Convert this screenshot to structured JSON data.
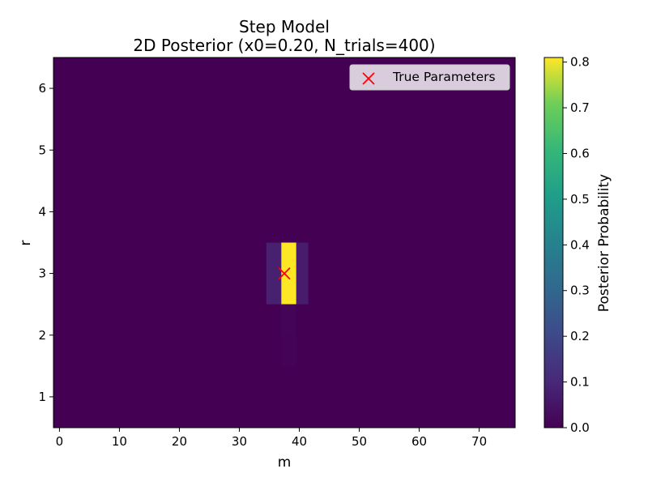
{
  "chart_data": {
    "type": "heatmap",
    "title_lines": [
      "Step Model",
      "2D Posterior (x0=0.20, N_trials=400)"
    ],
    "xlabel": "m",
    "ylabel": "r",
    "xlim": [
      -1,
      76
    ],
    "ylim": [
      0.5,
      6.5
    ],
    "xticks": [
      0,
      10,
      20,
      30,
      40,
      50,
      60,
      70
    ],
    "yticks": [
      1,
      2,
      3,
      4,
      5,
      6
    ],
    "background_value": 0.0,
    "cells": [
      {
        "m": [
          34.5,
          37.0
        ],
        "r": [
          2.5,
          3.5
        ],
        "value": 0.08
      },
      {
        "m": [
          37.0,
          39.5
        ],
        "r": [
          2.5,
          3.5
        ],
        "value": 0.81
      },
      {
        "m": [
          39.5,
          41.5
        ],
        "r": [
          2.5,
          3.5
        ],
        "value": 0.07
      },
      {
        "m": [
          37.0,
          39.5
        ],
        "r": [
          2.0,
          2.5
        ],
        "value": 0.01
      },
      {
        "m": [
          37.0,
          39.5
        ],
        "r": [
          1.5,
          2.0
        ],
        "value": 0.005
      }
    ],
    "marker": {
      "m": 37.5,
      "r": 3.0,
      "symbol": "x",
      "color": "#ff0000",
      "label": "True Parameters"
    },
    "legend": {
      "placement": "top-right",
      "entries": [
        "True Parameters"
      ]
    },
    "colorbar": {
      "label": "Posterior Probability",
      "min": 0.0,
      "max": 0.81,
      "ticks": [
        "0.0",
        "0.1",
        "0.2",
        "0.3",
        "0.4",
        "0.5",
        "0.6",
        "0.7",
        "0.8"
      ],
      "colormap": "viridis"
    },
    "grid": false
  }
}
